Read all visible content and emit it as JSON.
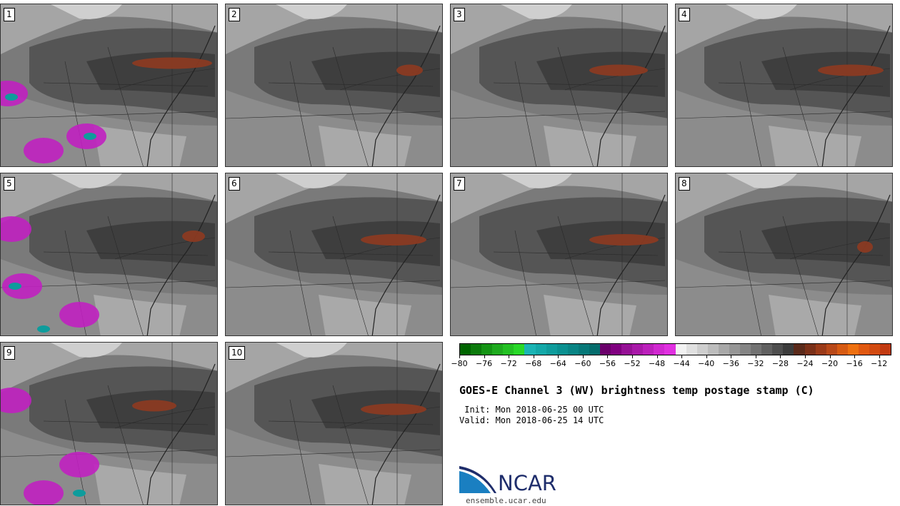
{
  "panels": [
    {
      "label": "1"
    },
    {
      "label": "2"
    },
    {
      "label": "3"
    },
    {
      "label": "4"
    },
    {
      "label": "5"
    },
    {
      "label": "6"
    },
    {
      "label": "7"
    },
    {
      "label": "8"
    },
    {
      "label": "9"
    },
    {
      "label": "10"
    }
  ],
  "colorbar": {
    "colors": [
      "#006400",
      "#0b7a0b",
      "#149414",
      "#1eaa1e",
      "#23c023",
      "#28d828",
      "#1ab4b4",
      "#13a8a8",
      "#0e9c9c",
      "#0a9090",
      "#088484",
      "#067878",
      "#046c6c",
      "#6b006b",
      "#800080",
      "#951095",
      "#a818a8",
      "#bb20bb",
      "#d028d0",
      "#e030e0",
      "#f2f2f2",
      "#e0e0e0",
      "#cecece",
      "#bcbcbc",
      "#a8a8a8",
      "#969696",
      "#848484",
      "#727272",
      "#606060",
      "#4e4e4e",
      "#3c3c3c",
      "#5a2a1a",
      "#7a3018",
      "#9a3a18",
      "#b84818",
      "#d65a12",
      "#ee7010",
      "#e05810",
      "#d24a10",
      "#c23a10"
    ],
    "tick_labels": [
      "−80",
      "−76",
      "−72",
      "−68",
      "−64",
      "−60",
      "−56",
      "−52",
      "−48",
      "−44",
      "−40",
      "−36",
      "−32",
      "−28",
      "−24",
      "−20",
      "−16",
      "−12"
    ],
    "tick_values": [
      -80,
      -76,
      -72,
      -68,
      -64,
      -60,
      -56,
      -52,
      -48,
      -44,
      -40,
      -36,
      -32,
      -28,
      -24,
      -20,
      -16,
      -12
    ],
    "min": -80,
    "max": -10
  },
  "title": "GOES-E Channel 3 (WV) brightness temp postage stamp (C)",
  "init": " Init: Mon 2018-06-25 00 UTC",
  "valid": "Valid: Mon 2018-06-25 14 UTC",
  "logo": {
    "text": "NCAR",
    "url": "ensemble.ucar.edu",
    "brand_color": "#1e2d6b",
    "accent_color": "#1a7fc1"
  }
}
